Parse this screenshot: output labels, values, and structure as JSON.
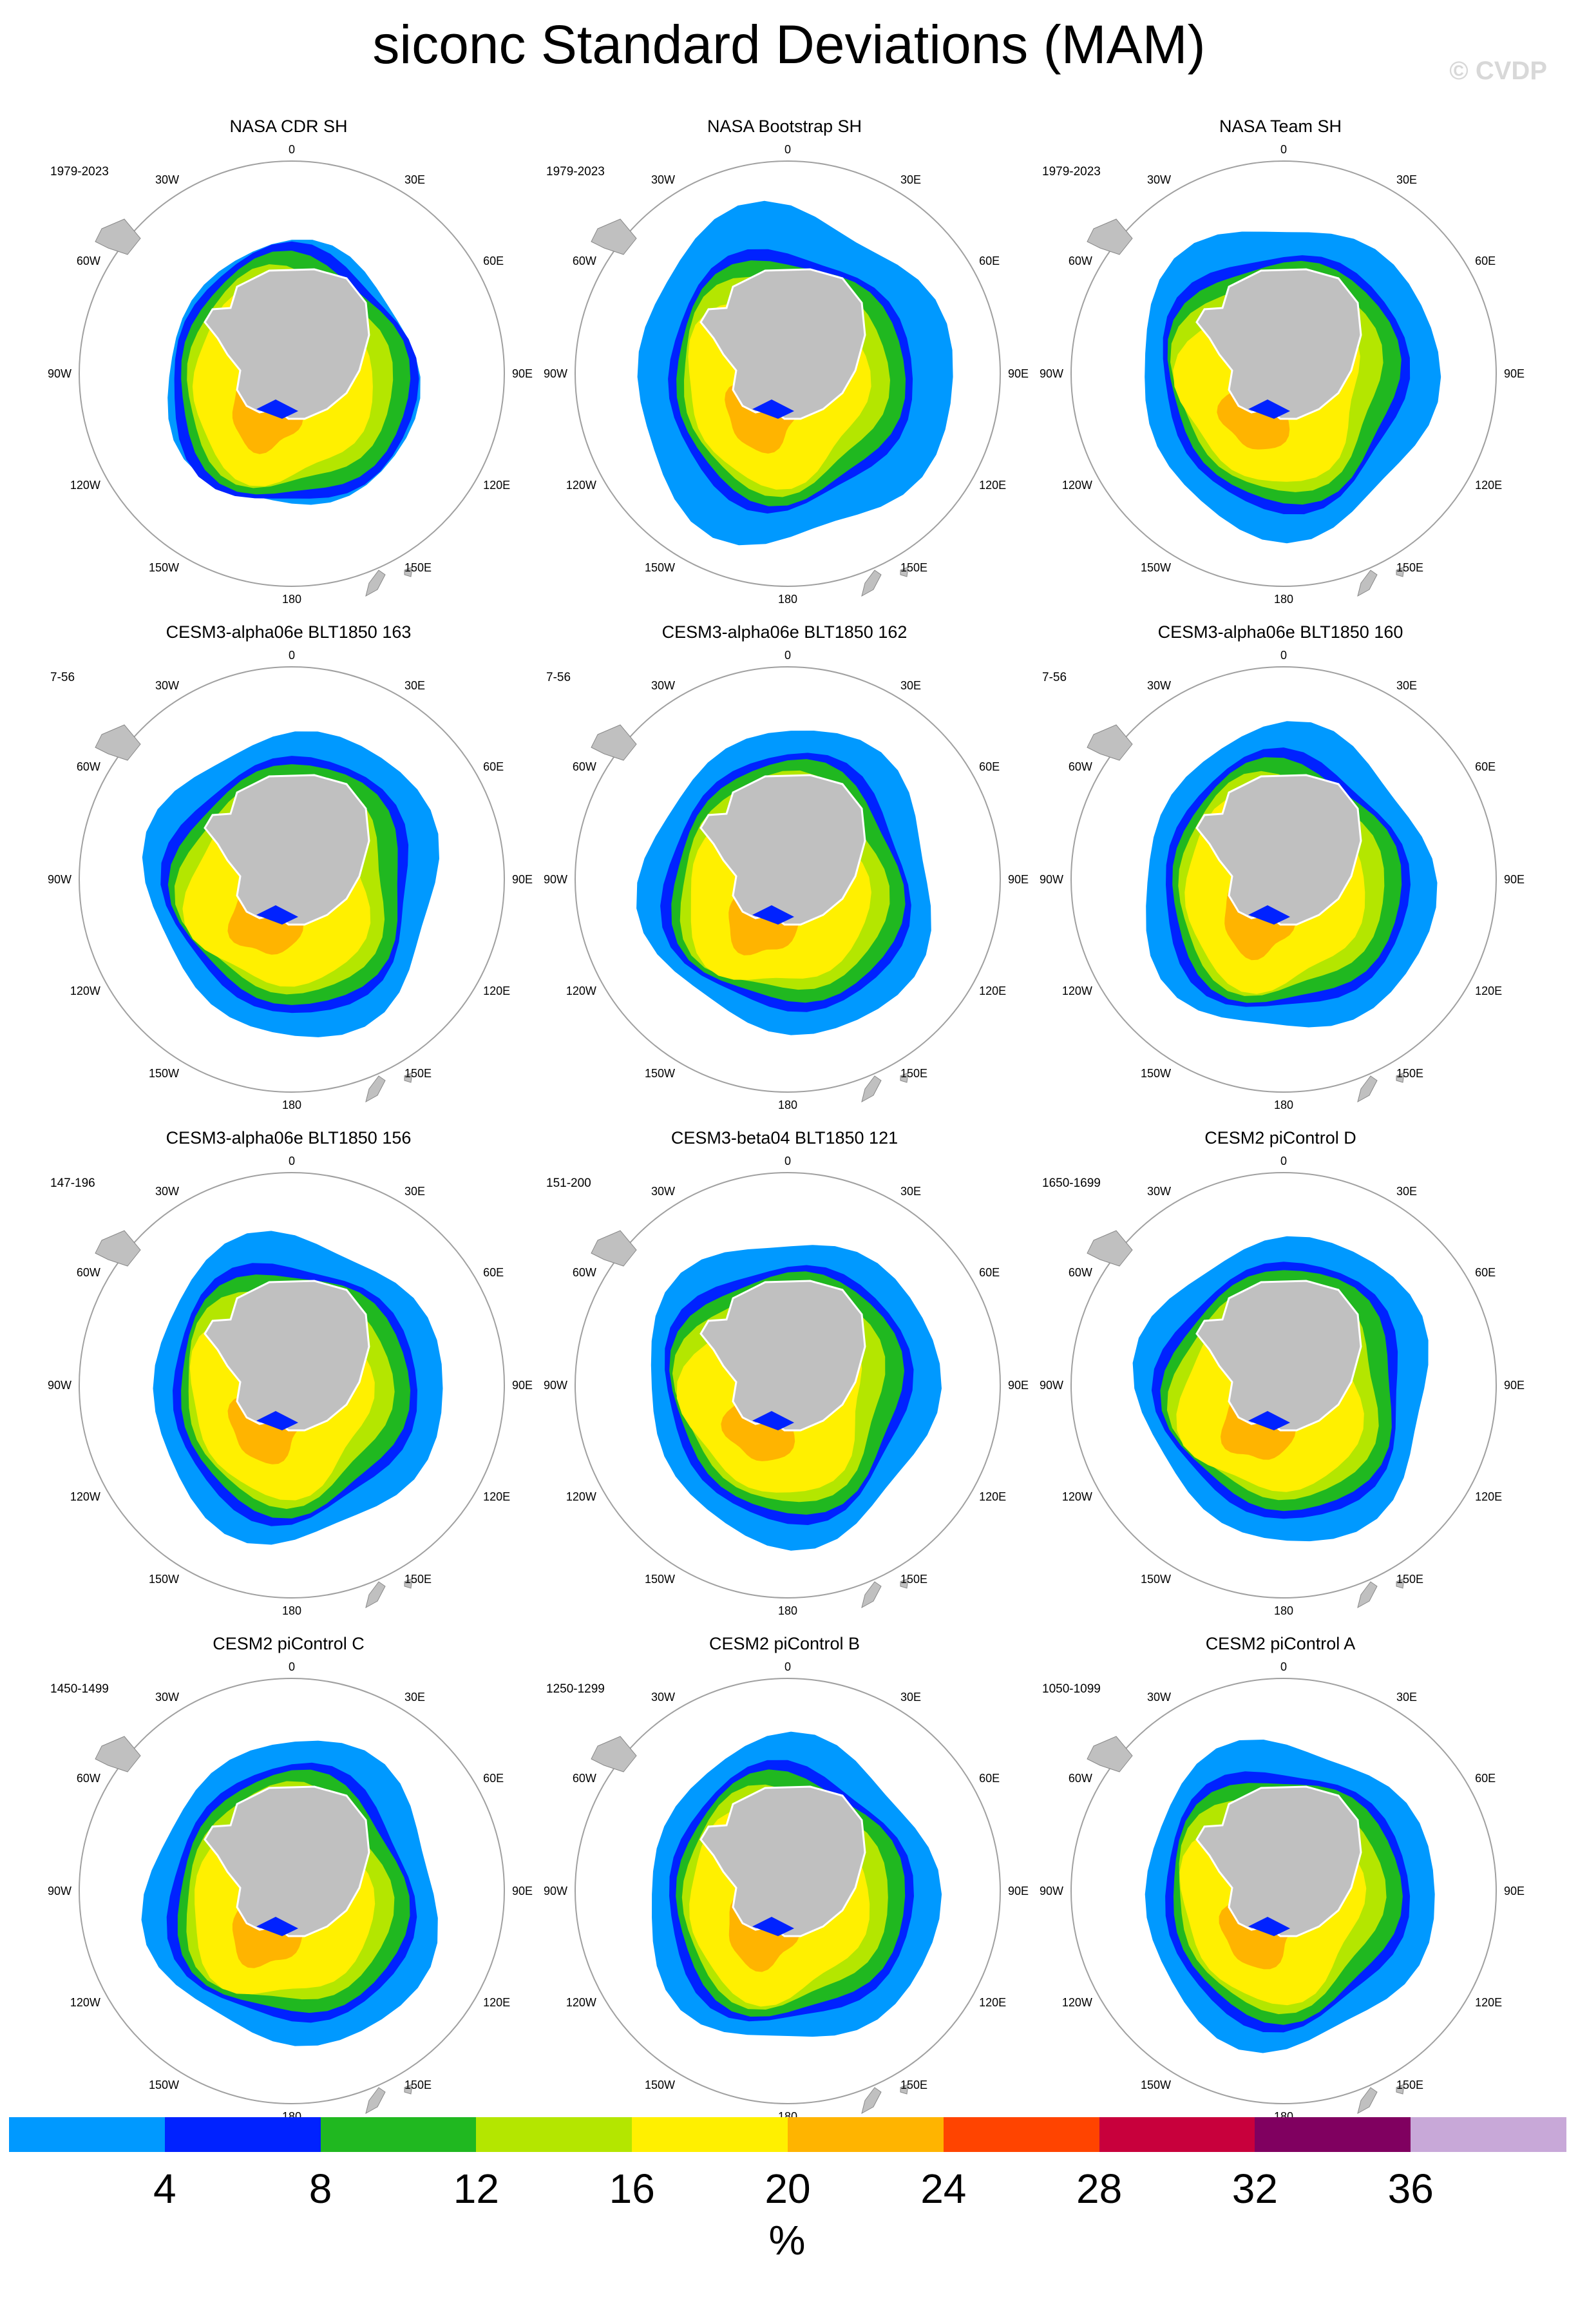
{
  "title": "siconc Standard Deviations (MAM)",
  "copyright": "© CVDP",
  "colors": {
    "land": "#c0c0c0",
    "bin_colors": [
      "#0099ff",
      "#0022ff",
      "#20b820",
      "#b4e600",
      "#fff000",
      "#ffb400",
      "#ff4400",
      "#c8003c",
      "#800060",
      "#c8a8d8"
    ]
  },
  "projection_labels": {
    "top": "0",
    "bottom": "180",
    "left": "90W",
    "right": "90E",
    "upper_left_1": "30W",
    "upper_left_2": "60W",
    "upper_right_1": "30E",
    "upper_right_2": "60E",
    "lower_left_1": "120W",
    "lower_left_2": "150W",
    "lower_right_1": "120E",
    "lower_right_2": "150E"
  },
  "panels": [
    {
      "title": "NASA CDR SH",
      "years": "1979-2023",
      "scheme": "obs"
    },
    {
      "title": "NASA Bootstrap SH",
      "years": "1979-2023",
      "scheme": "obs_wide"
    },
    {
      "title": "NASA Team SH",
      "years": "1979-2023",
      "scheme": "obs_mid"
    },
    {
      "title": "CESM3-alpha06e BLT1850 163",
      "years": "7-56",
      "scheme": "model"
    },
    {
      "title": "CESM3-alpha06e BLT1850 162",
      "years": "7-56",
      "scheme": "model"
    },
    {
      "title": "CESM3-alpha06e BLT1850 160",
      "years": "7-56",
      "scheme": "model"
    },
    {
      "title": "CESM3-alpha06e BLT1850 156",
      "years": "147-196",
      "scheme": "model"
    },
    {
      "title": "CESM3-beta04 BLT1850 121",
      "years": "151-200",
      "scheme": "model"
    },
    {
      "title": "CESM2 piControl D",
      "years": "1650-1699",
      "scheme": "model"
    },
    {
      "title": "CESM2 piControl C",
      "years": "1450-1499",
      "scheme": "model"
    },
    {
      "title": "CESM2 piControl B",
      "years": "1250-1299",
      "scheme": "model"
    },
    {
      "title": "CESM2 piControl A",
      "years": "1050-1099",
      "scheme": "model"
    }
  ],
  "colorbar": {
    "ticks": [
      "4",
      "8",
      "12",
      "16",
      "20",
      "24",
      "28",
      "32",
      "36"
    ],
    "unit": "%"
  }
}
